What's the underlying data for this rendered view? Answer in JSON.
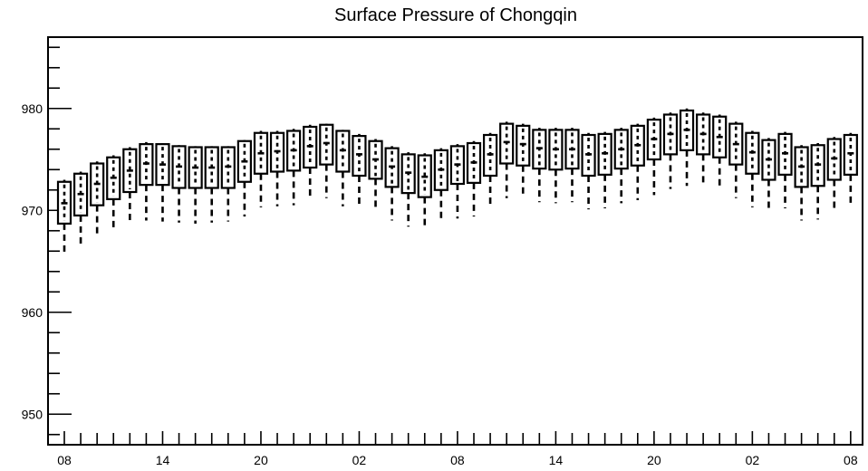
{
  "chart_data": {
    "type": "box",
    "title": "Surface Pressure of Chongqin",
    "xlabel": "",
    "ylabel": "",
    "ylim": [
      947,
      987
    ],
    "y_ticks": [
      950,
      960,
      970,
      980
    ],
    "x_tick_labels": [
      "08",
      "14",
      "20",
      "02",
      "08",
      "14",
      "20",
      "02",
      "08"
    ],
    "x_tick_positions": [
      0,
      6,
      12,
      18,
      24,
      30,
      36,
      42,
      48
    ],
    "grid": false,
    "boxes": [
      {
        "x": 0,
        "min": 965.5,
        "q1": 968.7,
        "median": 970.7,
        "q3": 972.8,
        "max": 973.0
      },
      {
        "x": 1,
        "min": 966.4,
        "q1": 969.5,
        "median": 971.6,
        "q3": 973.6,
        "max": 973.8
      },
      {
        "x": 2,
        "min": 967.4,
        "q1": 970.5,
        "median": 972.6,
        "q3": 974.6,
        "max": 974.8
      },
      {
        "x": 3,
        "min": 968.0,
        "q1": 971.1,
        "median": 973.2,
        "q3": 975.2,
        "max": 975.4
      },
      {
        "x": 4,
        "min": 968.8,
        "q1": 971.8,
        "median": 973.9,
        "q3": 976.0,
        "max": 976.2
      },
      {
        "x": 5,
        "min": 969.0,
        "q1": 972.5,
        "median": 974.6,
        "q3": 976.5,
        "max": 976.7
      },
      {
        "x": 6,
        "min": 968.9,
        "q1": 972.5,
        "median": 974.5,
        "q3": 976.5,
        "max": 976.6
      },
      {
        "x": 7,
        "min": 968.8,
        "q1": 972.2,
        "median": 974.3,
        "q3": 976.3,
        "max": 976.4
      },
      {
        "x": 8,
        "min": 968.7,
        "q1": 972.2,
        "median": 974.2,
        "q3": 976.2,
        "max": 976.3
      },
      {
        "x": 9,
        "min": 968.8,
        "q1": 972.2,
        "median": 974.2,
        "q3": 976.2,
        "max": 976.3
      },
      {
        "x": 10,
        "min": 968.9,
        "q1": 972.2,
        "median": 974.3,
        "q3": 976.2,
        "max": 976.3
      },
      {
        "x": 11,
        "min": 969.4,
        "q1": 972.8,
        "median": 974.8,
        "q3": 976.8,
        "max": 976.9
      },
      {
        "x": 12,
        "min": 970.3,
        "q1": 973.6,
        "median": 975.6,
        "q3": 977.6,
        "max": 977.8
      },
      {
        "x": 13,
        "min": 970.4,
        "q1": 973.8,
        "median": 975.8,
        "q3": 977.6,
        "max": 977.8
      },
      {
        "x": 14,
        "min": 970.5,
        "q1": 973.9,
        "median": 975.9,
        "q3": 977.8,
        "max": 978.0
      },
      {
        "x": 15,
        "min": 971.0,
        "q1": 974.2,
        "median": 976.3,
        "q3": 978.2,
        "max": 978.4
      },
      {
        "x": 16,
        "min": 971.2,
        "q1": 974.5,
        "median": 976.6,
        "q3": 978.4,
        "max": 978.5
      },
      {
        "x": 17,
        "min": 970.4,
        "q1": 973.8,
        "median": 975.9,
        "q3": 977.8,
        "max": 977.9
      },
      {
        "x": 18,
        "min": 970.2,
        "q1": 973.4,
        "median": 975.5,
        "q3": 977.3,
        "max": 977.5
      },
      {
        "x": 19,
        "min": 970.0,
        "q1": 973.1,
        "median": 975.0,
        "q3": 976.8,
        "max": 977.0
      },
      {
        "x": 20,
        "min": 969.0,
        "q1": 972.3,
        "median": 974.3,
        "q3": 976.1,
        "max": 976.3
      },
      {
        "x": 21,
        "min": 968.4,
        "q1": 971.7,
        "median": 973.7,
        "q3": 975.5,
        "max": 975.7
      },
      {
        "x": 22,
        "min": 968.1,
        "q1": 971.3,
        "median": 973.3,
        "q3": 975.4,
        "max": 975.6
      },
      {
        "x": 23,
        "min": 968.8,
        "q1": 972.0,
        "median": 974.0,
        "q3": 975.9,
        "max": 976.1
      },
      {
        "x": 24,
        "min": 969.2,
        "q1": 972.6,
        "median": 974.5,
        "q3": 976.3,
        "max": 976.5
      },
      {
        "x": 25,
        "min": 969.4,
        "q1": 972.7,
        "median": 974.7,
        "q3": 976.6,
        "max": 976.8
      },
      {
        "x": 26,
        "min": 970.2,
        "q1": 973.4,
        "median": 975.5,
        "q3": 977.4,
        "max": 977.6
      },
      {
        "x": 27,
        "min": 971.2,
        "q1": 974.6,
        "median": 976.7,
        "q3": 978.5,
        "max": 978.7
      },
      {
        "x": 28,
        "min": 971.2,
        "q1": 974.4,
        "median": 976.5,
        "q3": 978.3,
        "max": 978.5
      },
      {
        "x": 29,
        "min": 970.8,
        "q1": 974.1,
        "median": 976.1,
        "q3": 977.9,
        "max": 978.1
      },
      {
        "x": 30,
        "min": 970.7,
        "q1": 974.0,
        "median": 976.0,
        "q3": 977.9,
        "max": 978.1
      },
      {
        "x": 31,
        "min": 970.8,
        "q1": 974.1,
        "median": 976.0,
        "q3": 977.9,
        "max": 978.1
      },
      {
        "x": 32,
        "min": 970.1,
        "q1": 973.4,
        "median": 975.5,
        "q3": 977.4,
        "max": 977.6
      },
      {
        "x": 33,
        "min": 970.2,
        "q1": 973.5,
        "median": 975.6,
        "q3": 977.5,
        "max": 977.7
      },
      {
        "x": 34,
        "min": 970.7,
        "q1": 974.1,
        "median": 976.0,
        "q3": 977.9,
        "max": 978.1
      },
      {
        "x": 35,
        "min": 971.0,
        "q1": 974.4,
        "median": 976.4,
        "q3": 978.3,
        "max": 978.5
      },
      {
        "x": 36,
        "min": 971.5,
        "q1": 975.0,
        "median": 977.0,
        "q3": 978.9,
        "max": 979.1
      },
      {
        "x": 37,
        "min": 972.1,
        "q1": 975.5,
        "median": 977.5,
        "q3": 979.4,
        "max": 979.6
      },
      {
        "x": 38,
        "min": 972.4,
        "q1": 975.9,
        "median": 977.9,
        "q3": 979.8,
        "max": 980.0
      },
      {
        "x": 39,
        "min": 972.4,
        "q1": 975.5,
        "median": 977.5,
        "q3": 979.4,
        "max": 979.6
      },
      {
        "x": 40,
        "min": 972.0,
        "q1": 975.2,
        "median": 977.2,
        "q3": 979.2,
        "max": 979.4
      },
      {
        "x": 41,
        "min": 971.2,
        "q1": 974.5,
        "median": 976.5,
        "q3": 978.5,
        "max": 978.7
      },
      {
        "x": 42,
        "min": 970.3,
        "q1": 973.6,
        "median": 975.7,
        "q3": 977.6,
        "max": 977.8
      },
      {
        "x": 43,
        "min": 970.0,
        "q1": 973.0,
        "median": 975.0,
        "q3": 976.9,
        "max": 977.1
      },
      {
        "x": 44,
        "min": 970.2,
        "q1": 973.5,
        "median": 975.6,
        "q3": 977.5,
        "max": 977.7
      },
      {
        "x": 45,
        "min": 969.0,
        "q1": 972.3,
        "median": 974.3,
        "q3": 976.2,
        "max": 976.4
      },
      {
        "x": 46,
        "min": 969.1,
        "q1": 972.4,
        "median": 974.5,
        "q3": 976.4,
        "max": 976.6
      },
      {
        "x": 47,
        "min": 969.9,
        "q1": 973.0,
        "median": 975.1,
        "q3": 977.0,
        "max": 977.2
      },
      {
        "x": 48,
        "min": 970.3,
        "q1": 973.5,
        "median": 975.6,
        "q3": 977.4,
        "max": 977.6
      }
    ]
  }
}
